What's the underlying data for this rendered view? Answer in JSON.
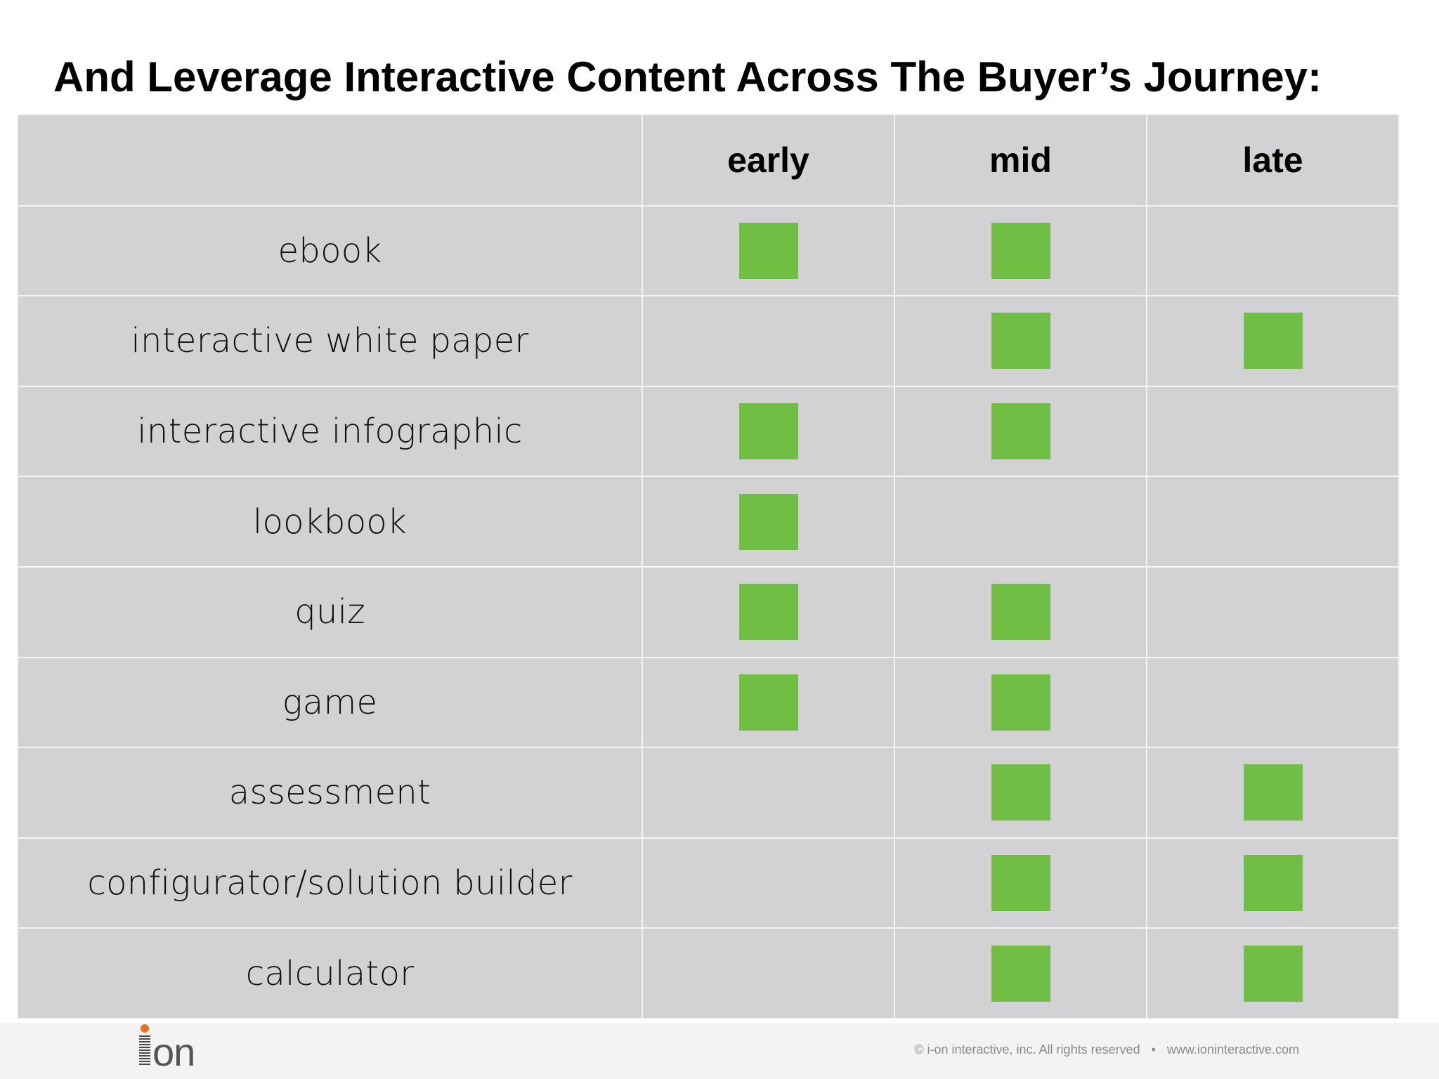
{
  "title": "And Leverage Interactive Content Across The Buyer’s Journey:",
  "table": {
    "corner": "",
    "stages": [
      "early",
      "mid",
      "late"
    ],
    "marker_color": "#70bf44",
    "rows": [
      {
        "label": "ebook",
        "early": true,
        "mid": true,
        "late": false
      },
      {
        "label": "interactive white paper",
        "early": false,
        "mid": true,
        "late": true
      },
      {
        "label": "interactive infographic",
        "early": true,
        "mid": true,
        "late": false
      },
      {
        "label": "lookbook",
        "early": true,
        "mid": false,
        "late": false
      },
      {
        "label": "quiz",
        "early": true,
        "mid": true,
        "late": false
      },
      {
        "label": "game",
        "early": true,
        "mid": true,
        "late": false
      },
      {
        "label": "assessment",
        "early": false,
        "mid": true,
        "late": true
      },
      {
        "label": "configurator/solution builder",
        "early": false,
        "mid": true,
        "late": true
      },
      {
        "label": "calculator",
        "early": false,
        "mid": true,
        "late": true
      }
    ]
  },
  "footer": {
    "logo_text": "on",
    "logo_dot_color": "#e8731f",
    "copyright": "© i-on interactive, inc. All rights reserved",
    "separator": "•",
    "website": "www.ioninteractive.com"
  }
}
